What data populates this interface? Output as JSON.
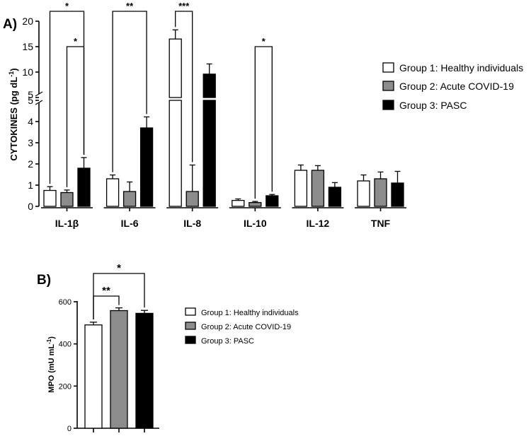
{
  "chart_data": [
    {
      "panel": "A)",
      "type": "bar",
      "ylabel": "CYTOKINES (pg dL",
      "ylabel_sup": "-1",
      "ylabel_close": ")",
      "categories": [
        "IL-1β",
        "IL-6",
        "IL-8",
        "IL-10",
        "IL-12",
        "TNF"
      ],
      "y_axis_break": {
        "lower_range": [
          0,
          5
        ],
        "upper_range": [
          5,
          20
        ]
      },
      "y_ticks_lower": [
        "0",
        "1",
        "2",
        "3",
        "4",
        "5"
      ],
      "y_ticks_upper": [
        "5",
        "10",
        "15",
        "20"
      ],
      "series": [
        {
          "name": "Group 1: Healthy individuals",
          "color": "#ffffff",
          "values": [
            0.75,
            1.3,
            16.5,
            0.28,
            1.7,
            1.2
          ],
          "errors": [
            0.18,
            0.18,
            1.8,
            0.07,
            0.25,
            0.28
          ]
        },
        {
          "name": "Group 2: Acute COVID-19",
          "color": "#8c8c8c",
          "values": [
            0.65,
            0.7,
            0.7,
            0.18,
            1.7,
            1.3
          ],
          "errors": [
            0.12,
            0.45,
            1.25,
            0.05,
            0.22,
            0.32
          ]
        },
        {
          "name": "Group 3: PASC",
          "color": "#000000",
          "values": [
            1.8,
            3.7,
            9.6,
            0.5,
            0.9,
            1.1
          ],
          "errors": [
            0.5,
            0.52,
            2.0,
            0.06,
            0.22,
            0.55
          ]
        }
      ],
      "significance": [
        {
          "label": "*",
          "category": 0,
          "from": 0,
          "to": 2
        },
        {
          "label": "*",
          "category": 0,
          "from": 1,
          "to": 2
        },
        {
          "label": "**",
          "category": 1,
          "from": 0,
          "to": 2
        },
        {
          "label": "***",
          "category": 2,
          "from": 0,
          "to": 1
        },
        {
          "label": "*",
          "category": 3,
          "from": 1,
          "to": 2
        }
      ]
    },
    {
      "panel": "B)",
      "type": "bar",
      "ylabel": "MPO (mU mL",
      "ylabel_sup": "-1",
      "ylabel_close": ")",
      "ylim": [
        0,
        600
      ],
      "y_ticks": [
        "0",
        "200",
        "400",
        "600"
      ],
      "series": [
        {
          "name": "Group 1: Healthy individuals",
          "color": "#ffffff",
          "value": 490,
          "error": 13
        },
        {
          "name": "Group 2: Acute COVID-19",
          "color": "#8c8c8c",
          "value": 558,
          "error": 13
        },
        {
          "name": "Group 3: PASC",
          "color": "#000000",
          "value": 545,
          "error": 14
        }
      ],
      "significance": [
        {
          "label": "**",
          "from": 0,
          "to": 1
        },
        {
          "label": "*",
          "from": 0,
          "to": 2
        }
      ]
    }
  ]
}
